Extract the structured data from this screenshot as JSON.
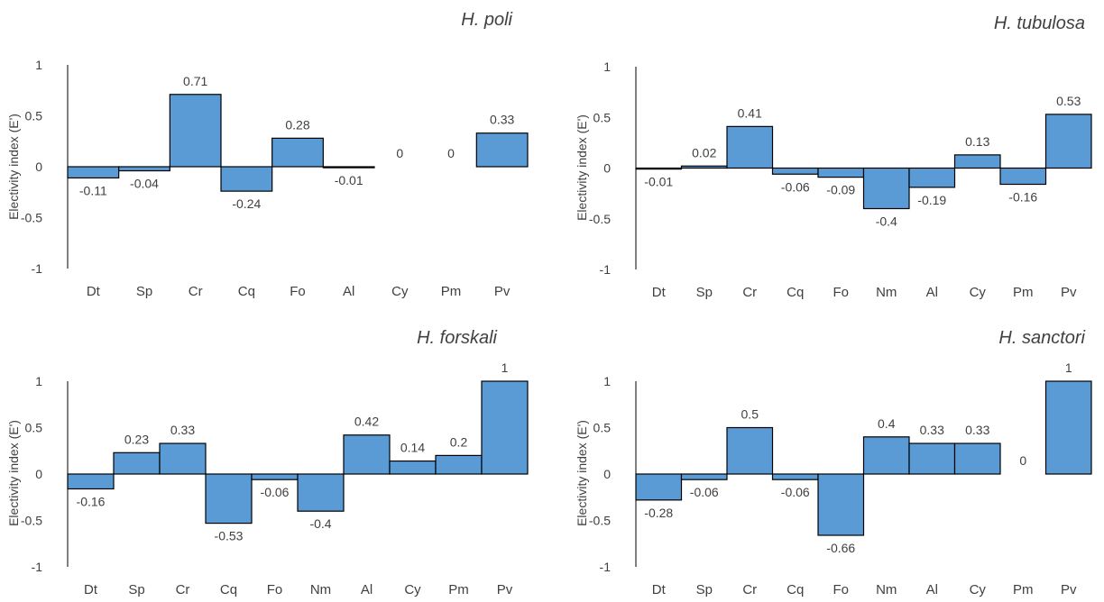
{
  "colors": {
    "bar_fill": "#5b9bd5",
    "bar_stroke": "#000000",
    "axis": "#000000",
    "text": "#404040"
  },
  "chart_data": [
    {
      "type": "bar",
      "title": "H. poli",
      "ylabel": "Electivity index (E')",
      "xlabel": "",
      "ylim": [
        -1,
        1
      ],
      "yticks": [
        "1",
        "0.5",
        "0",
        "-0.5",
        "-1"
      ],
      "categories": [
        "Dt",
        "Sp",
        "Cr",
        "Cq",
        "Fo",
        "Al",
        "Cy",
        "Pm",
        "Pv"
      ],
      "values": [
        -0.11,
        -0.04,
        0.71,
        -0.24,
        0.28,
        -0.01,
        0,
        0,
        0.33
      ],
      "data_labels": [
        "-0.11",
        "-0.04",
        "0.71",
        "-0.24",
        "0.28",
        "-0.01",
        "0",
        "0",
        "0.33"
      ],
      "grid": false,
      "legend": "none"
    },
    {
      "type": "bar",
      "title": "H. tubulosa",
      "ylabel": "Electivity index (E')",
      "xlabel": "",
      "ylim": [
        -1,
        1
      ],
      "yticks": [
        "1",
        "0.5",
        "0",
        "-0.5",
        "-1"
      ],
      "categories": [
        "Dt",
        "Sp",
        "Cr",
        "Cq",
        "Fo",
        "Nm",
        "Al",
        "Cy",
        "Pm",
        "Pv"
      ],
      "values": [
        -0.01,
        0.02,
        0.41,
        -0.06,
        -0.09,
        -0.4,
        -0.19,
        0.13,
        -0.16,
        0.53
      ],
      "data_labels": [
        "-0.01",
        "0.02",
        "0.41",
        "-0.06",
        "-0.09",
        "-0.4",
        "-0.19",
        "0.13",
        "-0.16",
        "0.53"
      ],
      "grid": false,
      "legend": "none"
    },
    {
      "type": "bar",
      "title": "H. forskali",
      "ylabel": "Electivity index (E')",
      "xlabel": "",
      "ylim": [
        -1,
        1
      ],
      "yticks": [
        "1",
        "0.5",
        "0",
        "-0.5",
        "-1"
      ],
      "categories": [
        "Dt",
        "Sp",
        "Cr",
        "Cq",
        "Fo",
        "Nm",
        "Al",
        "Cy",
        "Pm",
        "Pv"
      ],
      "values": [
        -0.16,
        0.23,
        0.33,
        -0.53,
        -0.06,
        -0.4,
        0.42,
        0.14,
        0.2,
        1
      ],
      "data_labels": [
        "-0.16",
        "0.23",
        "0.33",
        "-0.53",
        "-0.06",
        "-0.4",
        "0.42",
        "0.14",
        "0.2",
        "1"
      ],
      "grid": false,
      "legend": "none"
    },
    {
      "type": "bar",
      "title": "H. sanctori",
      "ylabel": "Electivity index (E')",
      "xlabel": "",
      "ylim": [
        -1,
        1
      ],
      "yticks": [
        "1",
        "0.5",
        "0",
        "-0.5",
        "-1"
      ],
      "categories": [
        "Dt",
        "Sp",
        "Cr",
        "Cq",
        "Fo",
        "Nm",
        "Al",
        "Cy",
        "Pm",
        "Pv"
      ],
      "values": [
        -0.28,
        -0.06,
        0.5,
        -0.06,
        -0.66,
        0.4,
        0.33,
        0.33,
        0,
        1
      ],
      "data_labels": [
        "-0.28",
        "-0.06",
        "0.5",
        "-0.06",
        "-0.66",
        "0.4",
        "0.33",
        "0.33",
        "0",
        "1"
      ],
      "grid": false,
      "legend": "none"
    }
  ]
}
